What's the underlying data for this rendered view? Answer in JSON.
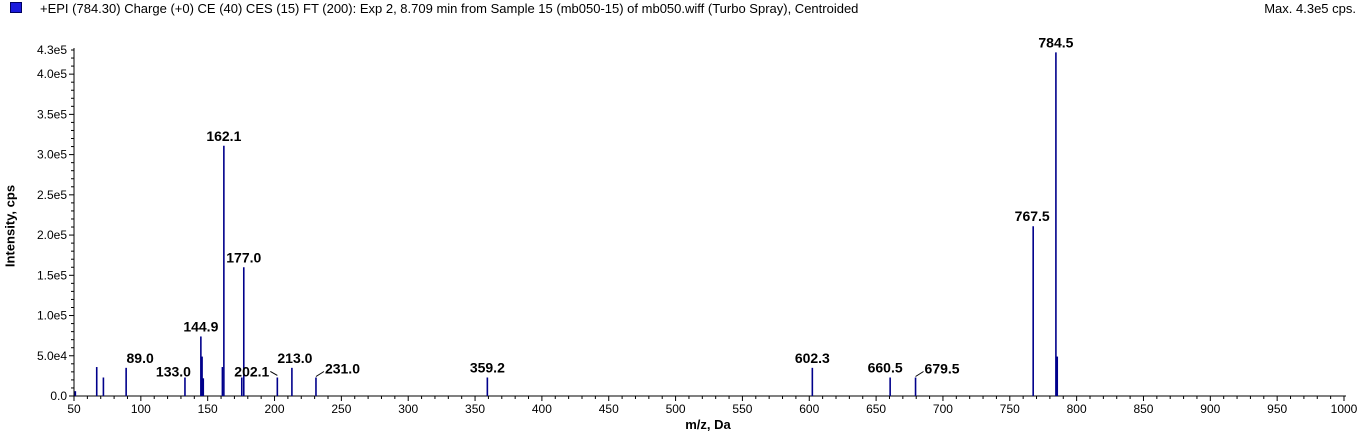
{
  "header": {
    "title": "+EPI (784.30) Charge (+0) CE (40) CES (15) FT (200): Exp 2, 8.709 min from Sample 15 (mb050-15) of mb050.wiff (Turbo Spray), Centroided",
    "max_label": "Max. 4.3e5 cps."
  },
  "colors": {
    "series": "#00008b",
    "swatch": "#1a1adc"
  },
  "chart_data": {
    "type": "bar",
    "title": "+EPI (784.30) Charge (+0) CE (40) CES (15) FT (200): Exp 2, 8.709 min from Sample 15 (mb050-15) of mb050.wiff (Turbo Spray), Centroided",
    "xlabel": "m/z, Da",
    "ylabel": "Intensity, cps",
    "xlim": [
      50,
      1000
    ],
    "ylim": [
      0,
      430000
    ],
    "grid": false,
    "x_ticks": [
      "50",
      "100",
      "150",
      "200",
      "250",
      "300",
      "350",
      "400",
      "450",
      "500",
      "550",
      "600",
      "650",
      "700",
      "750",
      "800",
      "850",
      "900",
      "950",
      "1000"
    ],
    "y_ticks": [
      "0.0",
      "5.0e4",
      "1.0e5",
      "1.5e5",
      "2.0e5",
      "2.5e5",
      "3.0e5",
      "3.5e5",
      "4.0e5",
      "4.3e5"
    ],
    "peaks": [
      {
        "mz": 51.0,
        "intensity": 6000
      },
      {
        "mz": 67.0,
        "intensity": 36000
      },
      {
        "mz": 72.0,
        "intensity": 23000
      },
      {
        "mz": 89.0,
        "intensity": 35000,
        "label": "89.0"
      },
      {
        "mz": 133.0,
        "intensity": 23000,
        "label": "133.0"
      },
      {
        "mz": 144.9,
        "intensity": 74000,
        "label": "144.9"
      },
      {
        "mz": 145.8,
        "intensity": 49000
      },
      {
        "mz": 146.7,
        "intensity": 22000
      },
      {
        "mz": 161.0,
        "intensity": 36000
      },
      {
        "mz": 162.1,
        "intensity": 311000,
        "label": "162.1"
      },
      {
        "mz": 175.5,
        "intensity": 23000
      },
      {
        "mz": 177.0,
        "intensity": 160000,
        "label": "177.0"
      },
      {
        "mz": 202.1,
        "intensity": 23000,
        "label": "202.1"
      },
      {
        "mz": 213.0,
        "intensity": 35000,
        "label": "213.0"
      },
      {
        "mz": 231.0,
        "intensity": 23000,
        "label": "231.0"
      },
      {
        "mz": 359.2,
        "intensity": 23000,
        "label": "359.2"
      },
      {
        "mz": 602.3,
        "intensity": 35000,
        "label": "602.3"
      },
      {
        "mz": 660.5,
        "intensity": 23000,
        "label": "660.5"
      },
      {
        "mz": 679.5,
        "intensity": 23000,
        "label": "679.5"
      },
      {
        "mz": 767.5,
        "intensity": 211000,
        "label": "767.5"
      },
      {
        "mz": 784.5,
        "intensity": 427000,
        "label": "784.5"
      },
      {
        "mz": 785.5,
        "intensity": 49000
      }
    ]
  }
}
